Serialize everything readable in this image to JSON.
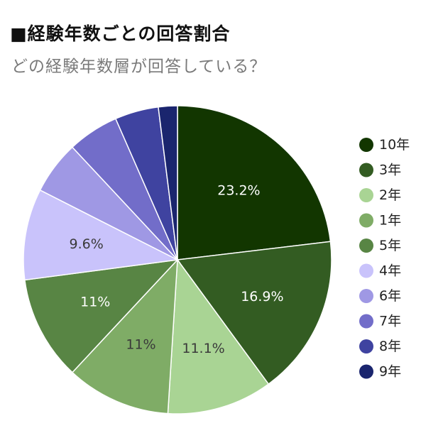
{
  "header": {
    "title": "■経験年数ごとの回答割合",
    "subtitle": "どの経験年数層が回答している？"
  },
  "chart_data": {
    "type": "pie",
    "title": "■経験年数ごとの回答割合",
    "subtitle": "どの経験年数層が回答している？",
    "legend_position": "right",
    "slices": [
      {
        "label": "10年",
        "value": 23.2,
        "color": "#123600",
        "data_label": "23.2%",
        "label_color": "#ffffff"
      },
      {
        "label": "3年",
        "value": 16.9,
        "color": "#335c22",
        "data_label": "16.9%",
        "label_color": "#ffffff"
      },
      {
        "label": "2年",
        "value": 11.1,
        "color": "#a9d494",
        "data_label": "11.1%",
        "label_color": "#3a3a3a"
      },
      {
        "label": "1年",
        "value": 11.0,
        "color": "#7fac66",
        "data_label": "11%",
        "label_color": "#3a3a3a"
      },
      {
        "label": "5年",
        "value": 11.0,
        "color": "#588544",
        "data_label": "11%",
        "label_color": "#ffffff"
      },
      {
        "label": "4年",
        "value": 9.6,
        "color": "#c9c3fb",
        "data_label": "9.6%",
        "label_color": "#3a3a3a"
      },
      {
        "label": "6年",
        "value": 5.6,
        "color": "#9f98e4",
        "data_label": "",
        "label_color": "#3a3a3a"
      },
      {
        "label": "7年",
        "value": 5.4,
        "color": "#726dc9",
        "data_label": "",
        "label_color": "#ffffff"
      },
      {
        "label": "8年",
        "value": 4.6,
        "color": "#3f43a0",
        "data_label": "",
        "label_color": "#ffffff"
      },
      {
        "label": "9年",
        "value": 2.0,
        "color": "#1a256e",
        "data_label": "",
        "label_color": "#ffffff"
      }
    ]
  }
}
